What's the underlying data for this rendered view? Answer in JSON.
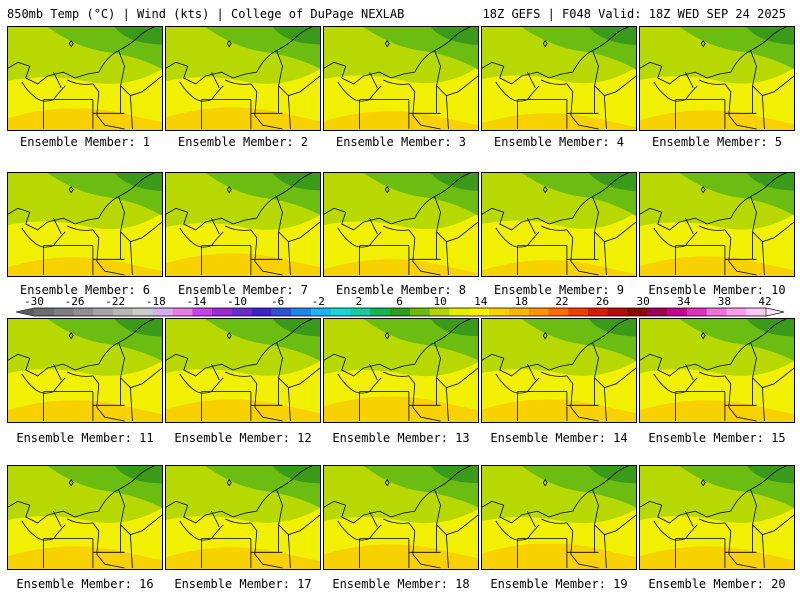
{
  "header": {
    "left": "850mb Temp (°C) | Wind (kts) | College of DuPage NEXLAB",
    "right": "18Z GEFS | F048 Valid: 18Z WED SEP 24 2025"
  },
  "colors": {
    "dark_green": "#3a9a1a",
    "green": "#6cbd12",
    "yellow_green": "#b7d800",
    "yellow": "#f1f000",
    "orange_yellow": "#f7d100"
  },
  "panels": [
    {
      "label": "Ensemble Member: 1",
      "warmth": 0.55
    },
    {
      "label": "Ensemble Member: 2",
      "warmth": 0.6
    },
    {
      "label": "Ensemble Member: 3",
      "warmth": 0.45
    },
    {
      "label": "Ensemble Member: 4",
      "warmth": 0.4
    },
    {
      "label": "Ensemble Member: 5",
      "warmth": 0.5
    },
    {
      "label": "Ensemble Member: 6",
      "warmth": 0.45
    },
    {
      "label": "Ensemble Member: 7",
      "warmth": 0.6
    },
    {
      "label": "Ensemble Member: 8",
      "warmth": 0.4
    },
    {
      "label": "Ensemble Member: 9",
      "warmth": 0.35
    },
    {
      "label": "Ensemble Member: 10",
      "warmth": 0.5
    },
    {
      "label": "Ensemble Member: 11",
      "warmth": 0.55
    },
    {
      "label": "Ensemble Member: 12",
      "warmth": 0.6
    },
    {
      "label": "Ensemble Member: 13",
      "warmth": 0.7
    },
    {
      "label": "Ensemble Member: 14",
      "warmth": 0.6
    },
    {
      "label": "Ensemble Member: 15",
      "warmth": 0.55
    },
    {
      "label": "Ensemble Member: 16",
      "warmth": 0.6
    },
    {
      "label": "Ensemble Member: 17",
      "warmth": 0.55
    },
    {
      "label": "Ensemble Member: 18",
      "warmth": 0.65
    },
    {
      "label": "Ensemble Member: 19",
      "warmth": 0.7
    },
    {
      "label": "Ensemble Member: 20",
      "warmth": 0.6
    }
  ],
  "colorbar": {
    "labels": [
      "-30",
      "-26",
      "-22",
      "-18",
      "-14",
      "-10",
      "-6",
      "-2",
      "2",
      "6",
      "10",
      "14",
      "18",
      "22",
      "26",
      "30",
      "34",
      "38",
      "42"
    ],
    "colors": [
      "#6c6c6c",
      "#7e7e7e",
      "#909090",
      "#a4a4a4",
      "#b8b8b8",
      "#cbcbcb",
      "#d6aef0",
      "#e67ce6",
      "#c742e8",
      "#9a2ad8",
      "#6a2ad0",
      "#3c22c8",
      "#2a52d8",
      "#1e86e8",
      "#1ab4ee",
      "#18d6d6",
      "#16cc9a",
      "#12b652",
      "#2e9e18",
      "#6cbb0c",
      "#b2d400",
      "#e4ee00",
      "#fff000",
      "#ffd000",
      "#ffb400",
      "#ff9400",
      "#ff6c00",
      "#f03e00",
      "#d81a00",
      "#b80c0c",
      "#8e0606",
      "#a00050",
      "#c80090",
      "#e030c0",
      "#f070e0",
      "#ff9cf2",
      "#ffc8f8"
    ]
  }
}
